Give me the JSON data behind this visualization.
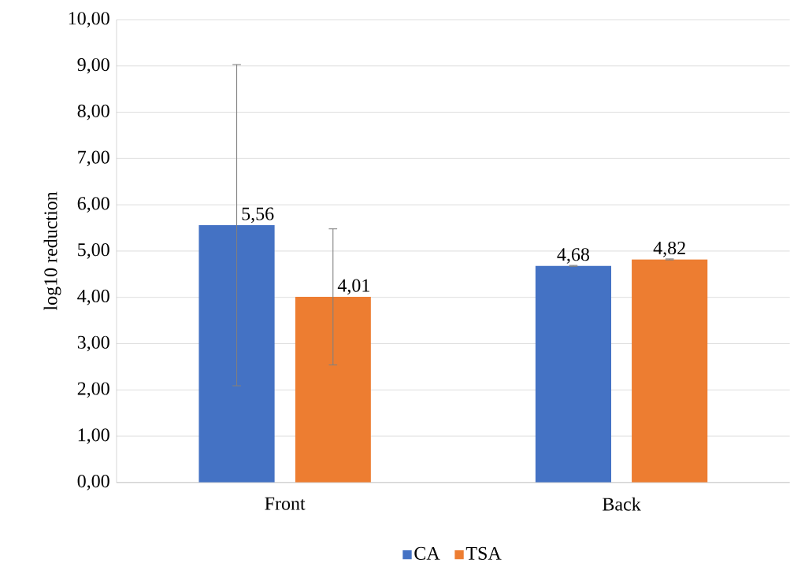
{
  "chart_data": {
    "type": "bar",
    "ylabel": "log10 reduction",
    "categories": [
      "Front",
      "Back"
    ],
    "series": [
      {
        "name": "CA",
        "color": "#4472c4",
        "values": [
          5.56,
          4.68
        ],
        "errors": [
          3.47,
          0.01
        ],
        "value_labels": [
          "5,56",
          "4,68"
        ]
      },
      {
        "name": "TSA",
        "color": "#ed7d31",
        "values": [
          4.01,
          4.82
        ],
        "errors": [
          1.47,
          0.01
        ],
        "value_labels": [
          "4,01",
          "4,82"
        ]
      }
    ],
    "ylim": [
      0,
      10
    ],
    "yticks": [
      {
        "value": 0,
        "label": "0,00"
      },
      {
        "value": 1,
        "label": "1,00"
      },
      {
        "value": 2,
        "label": "2,00"
      },
      {
        "value": 3,
        "label": "3,00"
      },
      {
        "value": 4,
        "label": "4,00"
      },
      {
        "value": 5,
        "label": "5,00"
      },
      {
        "value": 6,
        "label": "6,00"
      },
      {
        "value": 7,
        "label": "7,00"
      },
      {
        "value": 8,
        "label": "8,00"
      },
      {
        "value": 9,
        "label": "9,00"
      },
      {
        "value": 10,
        "label": "10,00"
      }
    ],
    "grid": "y",
    "legend": "bottom"
  }
}
